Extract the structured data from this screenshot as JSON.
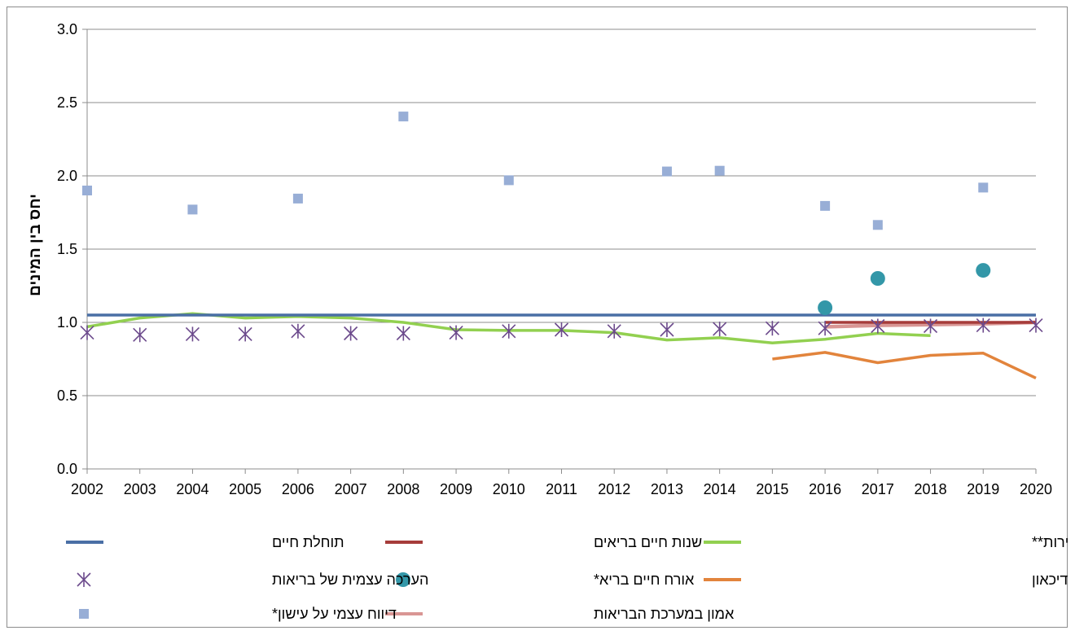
{
  "chart_data": {
    "type": "line",
    "ylabel": "יחס בין המינים",
    "xlabel": "",
    "title": "",
    "ylim": [
      0,
      3.0
    ],
    "yticks": [
      "0.0",
      "0.5",
      "1.0",
      "1.5",
      "2.0",
      "2.5",
      "3.0"
    ],
    "categories": [
      "2002",
      "2003",
      "2004",
      "2005",
      "2006",
      "2007",
      "2008",
      "2009",
      "2010",
      "2011",
      "2012",
      "2013",
      "2014",
      "2015",
      "2016",
      "2017",
      "2018",
      "2019",
      "2020"
    ],
    "grid": "horizontal",
    "legend_position": "bottom",
    "series": [
      {
        "name": "תוחלת חיים",
        "kind": "line",
        "color": "#4a6fa5",
        "values": [
          1.05,
          1.05,
          1.05,
          1.05,
          1.05,
          1.05,
          1.05,
          1.05,
          1.05,
          1.05,
          1.05,
          1.05,
          1.05,
          1.05,
          1.05,
          1.05,
          1.05,
          1.05,
          1.05
        ]
      },
      {
        "name": "שנות חיים בריאים",
        "kind": "line",
        "color": "#a63c3a",
        "values": [
          null,
          null,
          null,
          null,
          null,
          null,
          null,
          null,
          null,
          null,
          null,
          null,
          null,
          null,
          1.0,
          1.0,
          1.0,
          1.0,
          1.0
        ]
      },
      {
        "name": "מקרים חדשים של שאתות ממאירות**",
        "kind": "line",
        "color": "#92d050",
        "values": [
          0.97,
          1.03,
          1.06,
          1.03,
          1.04,
          1.03,
          1.0,
          0.95,
          0.945,
          0.945,
          0.93,
          0.88,
          0.895,
          0.86,
          0.885,
          0.925,
          0.91,
          null,
          null
        ]
      },
      {
        "name": "הערכה עצמית של בריאות",
        "kind": "star",
        "color": "#6c4a8c",
        "values": [
          0.93,
          0.915,
          0.92,
          0.92,
          0.94,
          0.925,
          0.925,
          0.93,
          0.94,
          0.95,
          0.94,
          0.95,
          0.955,
          0.96,
          0.96,
          0.975,
          0.975,
          0.98,
          0.98
        ]
      },
      {
        "name": "אורח חיים בריא*",
        "kind": "circle",
        "color": "#3397a8",
        "values": [
          null,
          null,
          null,
          null,
          null,
          null,
          null,
          null,
          null,
          null,
          null,
          null,
          null,
          null,
          1.1,
          1.3,
          null,
          1.355,
          null
        ]
      },
      {
        "name": "תחושת דיכאון",
        "kind": "line",
        "color": "#e2843c",
        "values": [
          null,
          null,
          null,
          null,
          null,
          null,
          null,
          null,
          null,
          null,
          null,
          null,
          null,
          0.75,
          0.795,
          0.725,
          0.775,
          0.79,
          0.62
        ]
      },
      {
        "name": "דיווח עצמי על עישון*",
        "kind": "square",
        "color": "#98aed6",
        "values": [
          1.9,
          null,
          1.77,
          null,
          1.845,
          null,
          2.405,
          null,
          1.97,
          null,
          null,
          2.03,
          2.035,
          null,
          1.795,
          1.665,
          null,
          1.92,
          null
        ]
      },
      {
        "name": "אמון במערכת הבריאות",
        "kind": "line",
        "color": "#d99694",
        "values": [
          null,
          null,
          null,
          null,
          null,
          null,
          null,
          null,
          null,
          null,
          null,
          null,
          null,
          null,
          0.97,
          0.98,
          0.985,
          0.99,
          1.0
        ]
      }
    ]
  }
}
